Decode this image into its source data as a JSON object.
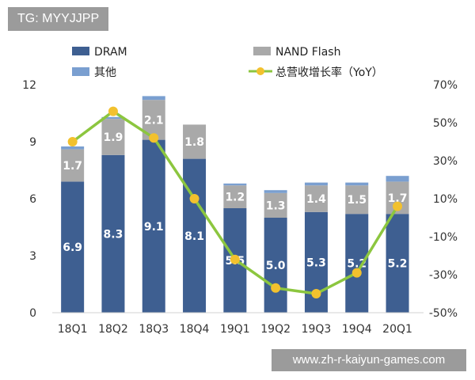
{
  "watermarks": {
    "top": "TG: MYYJJPP",
    "bottom": "www.zh-r-kaiyun-games.com"
  },
  "chart_data": {
    "type": "bar",
    "stacked": true,
    "categories": [
      "18Q1",
      "18Q2",
      "18Q3",
      "18Q4",
      "19Q1",
      "19Q2",
      "19Q3",
      "19Q4",
      "20Q1"
    ],
    "series": [
      {
        "name": "DRAM",
        "type": "bar",
        "axis": "left",
        "color": "#3e5f91",
        "values": [
          6.9,
          8.3,
          9.1,
          8.1,
          5.5,
          5.0,
          5.3,
          5.2,
          5.2
        ]
      },
      {
        "name": "NAND Flash",
        "type": "bar",
        "axis": "left",
        "color": "#a9a9a9",
        "values": [
          1.7,
          1.9,
          2.1,
          1.8,
          1.2,
          1.3,
          1.4,
          1.5,
          1.7
        ]
      },
      {
        "name": "其他",
        "type": "bar",
        "axis": "left",
        "color": "#7a9fd0",
        "values": [
          0.15,
          0.1,
          0.2,
          0.0,
          0.1,
          0.15,
          0.15,
          0.15,
          0.3
        ]
      },
      {
        "name": "总营收增长率（YoY）",
        "type": "line",
        "axis": "right",
        "line_color": "#8cc63f",
        "marker_color": "#f2c12e",
        "values": [
          40,
          56,
          42,
          10,
          -22,
          -37,
          -40,
          -29,
          6
        ]
      }
    ],
    "y_left": {
      "ticks": [
        "0",
        "3",
        "6",
        "9",
        "12"
      ],
      "ylim": [
        0,
        12
      ]
    },
    "y_right": {
      "ticks": [
        "-50%",
        "-30%",
        "-10%",
        "10%",
        "30%",
        "50%",
        "70%"
      ],
      "ylim": [
        -50,
        70
      ]
    },
    "grid": false,
    "legend": {
      "position": "top",
      "items": [
        "DRAM",
        "NAND Flash",
        "其他",
        "总营收增长率（YoY）"
      ]
    }
  }
}
